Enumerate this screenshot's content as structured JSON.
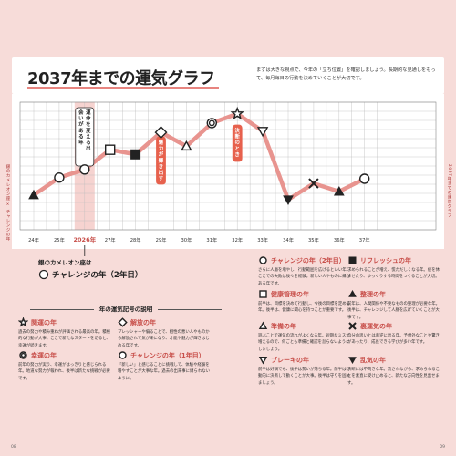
{
  "page": {
    "title": "2037年までの運気グラフ",
    "intro": "まずは大きな視点で、今年の「立ち位置」を確認しましょう。長期的な見通しをもって、毎月毎日の行動を決めていくことが大切です。"
  },
  "side_notes": {
    "left": "銀のカメレオン座 × チャレンジの年",
    "right": "2037年までの運気グラフ"
  },
  "chart_data": {
    "type": "line",
    "categories": [
      "24年",
      "25年",
      "2026年",
      "27年",
      "28年",
      "29年",
      "30年",
      "31年",
      "32年",
      "33年",
      "34年",
      "35年",
      "36年",
      "37年"
    ],
    "x": [
      24,
      25,
      26,
      27,
      28,
      29,
      30,
      31,
      32,
      33,
      34,
      35,
      36,
      37
    ],
    "values": [
      3,
      4.5,
      5.2,
      6.9,
      6.5,
      8.4,
      7.2,
      9.2,
      10,
      8.5,
      2.6,
      4.0,
      3.3,
      4.4
    ],
    "symbols": [
      "triangle-filled",
      "circle-open",
      "circle-open",
      "square-open",
      "square-filled",
      "diamond-open",
      "triangle-open",
      "double-circle",
      "star-open",
      "triangle-down-open",
      "triangle-down-filled",
      "x-mark",
      "triangle-filled",
      "circle-open"
    ],
    "ylim": [
      0,
      11
    ],
    "grid": true,
    "annotations": [
      {
        "x": 26,
        "text": "運命を変える出会いがある年"
      },
      {
        "x": 29,
        "text": "魅力が輝き出す"
      },
      {
        "x": 32,
        "text": "決断のとき"
      }
    ],
    "highlight_x": 26
  },
  "chameleon": {
    "label": "銀のカメレオン座は",
    "year_label": "チャレンジの年（2年目）"
  },
  "legend": {
    "title": "年の運気記号の説明",
    "items": [
      {
        "name": "関運の年",
        "symbol": "star-open",
        "text": "過去の努力や積み重ねが評価される最高の年。積極的な行動が大事。ここで新たなスタートを切ると、幸運が続きます。"
      },
      {
        "name": "解放の年",
        "symbol": "diamond-open",
        "text": "プレッシャーや偏ることで、相性の悪い人やものから解放されて気が楽になり、才能や魅力が輝きはじめる年です。"
      },
      {
        "name": "チャレンジの年（2年目）",
        "symbol": "circle-open",
        "text": "さらに人脈を増やし、行動範囲を広げるといい年。ここでの失敗は後々を経験。新しい人やものに縁がある年です。"
      },
      {
        "name": "リフレッシュの年",
        "symbol": "square-filled",
        "text": "求められることが増え、慌ただしくなる年。疲を休ませたり、ゆっくりする時間をつくることが大切。"
      },
      {
        "name": "幸運の年",
        "symbol": "double-circle",
        "text": "前年の努力が実り、幸運がはっきりと感じられる年。地道な努力が報われ、後半は新たな挑戦が必要です。"
      },
      {
        "name": "チャレンジの年（1年目）",
        "symbol": "circle-open",
        "text": "「新しい」と感じることに挑戦して、体験や経験を増やすことが大事な年。過去の出来事に縛られないように。"
      },
      {
        "name": "健康管理の年",
        "symbol": "square-open",
        "text": "前半は、目標を決めて行動し、今後の目標を定める年。後半は、健康に関心を持つことが重要です。"
      },
      {
        "name": "整理の年",
        "symbol": "triangle-filled",
        "text": "前年は、人間関係や不要なものの整理が必要な年。後半は、チャレンジして人脈を広げていくことが大事です。"
      },
      {
        "name": "準備の年",
        "symbol": "triangle-open",
        "text": "遊ぶことで運気の流れがよくなる年。短期なミスが増えるので、何ごとも準備と確認を怠らないようにしましょう。"
      },
      {
        "name": "裏運気の年",
        "symbol": "x-mark",
        "text": "自分の思いとは真逆に出る年。予想外なことや驚きがあったり、成長できる学びが多い年です。"
      },
      {
        "name": "ブレーキの年",
        "symbol": "triangle-down-open",
        "text": "前半は好調でも、後半は勢いが落ちる年。前半は行動的に決断して動くことが大事。後半は守りを固めましょう。"
      },
      {
        "name": "乱気の年",
        "symbol": "triangle-down-filled",
        "text": "決断には不向きな年。流されながら、求められることを素直に受け止めると、新たな方向性を見出せます。"
      }
    ]
  },
  "page_numbers": {
    "left": "08",
    "right": "09"
  }
}
